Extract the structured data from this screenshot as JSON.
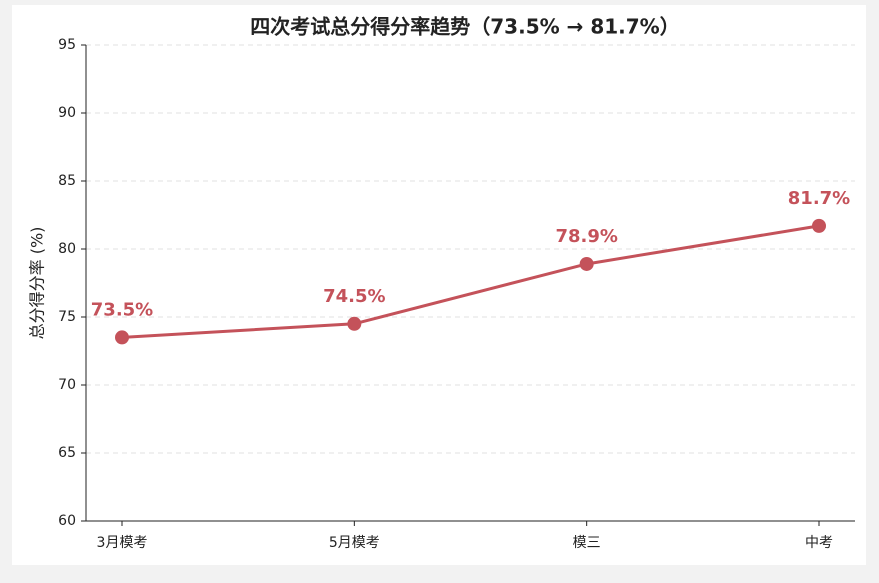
{
  "chart_data": {
    "type": "line",
    "title": "四次考试总分得分率趋势（73.5% → 81.7%）",
    "y_label": "总分得分率 (%)",
    "categories": [
      "3月模考",
      "5月模考",
      "模三",
      "中考"
    ],
    "series": [
      {
        "color": "#c4525a",
        "values": [
          73.5,
          74.5,
          78.9,
          81.7
        ],
        "value_labels": [
          "73.5%",
          "74.5%",
          "78.9%",
          "81.7%"
        ]
      }
    ],
    "ylim": [
      60,
      95
    ],
    "yticks": [
      60,
      65,
      70,
      75,
      80,
      85,
      90,
      95
    ],
    "grid": true
  }
}
